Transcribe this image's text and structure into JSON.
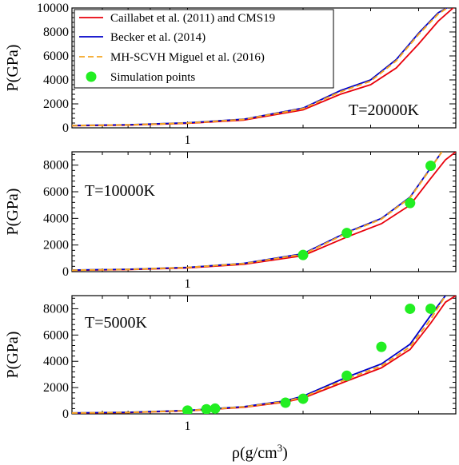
{
  "chart_data": [
    {
      "type": "line",
      "annotation": "T=20000K",
      "ylabel": "P(GPa)",
      "xlabel": "",
      "ylim": [
        0,
        10000
      ],
      "yticks": [
        0,
        2000,
        4000,
        6000,
        8000,
        10000
      ],
      "ytick_labels": [
        "0",
        "2000",
        "4000",
        "6000",
        "8000",
        "10000"
      ],
      "xscale": "log",
      "xlim": [
        0.5,
        5.0
      ],
      "xtick_labels": [
        {
          "value": 1,
          "label": "1"
        }
      ],
      "legend_loc": "top-left",
      "series": [
        {
          "name": "Caillabet et al. (2011) and CMS19",
          "color": "#e8000b",
          "style": "solid",
          "x": [
            0.5,
            0.7,
            1.0,
            1.4,
            2.0,
            2.5,
            3.0,
            3.5,
            4.0,
            4.5,
            5.0
          ],
          "y": [
            180,
            230,
            370,
            650,
            1500,
            2800,
            3600,
            5000,
            7000,
            8900,
            10200
          ]
        },
        {
          "name": "Becker et al. (2014)",
          "color": "#0000c8",
          "style": "solid",
          "x": [
            0.5,
            0.7,
            1.0,
            1.4,
            2.0,
            2.5,
            3.0,
            3.5,
            4.0,
            4.5,
            4.85
          ],
          "y": [
            200,
            260,
            420,
            720,
            1650,
            3100,
            4000,
            5700,
            7900,
            9600,
            10200
          ]
        },
        {
          "name": "MH-SCVH Miguel et al. (2016)",
          "color": "#f5a623",
          "style": "dashed",
          "x": [
            0.5,
            0.7,
            1.0,
            1.4,
            2.0,
            2.5,
            3.0,
            3.5,
            4.0,
            4.5,
            4.85
          ],
          "y": [
            190,
            250,
            400,
            700,
            1600,
            3000,
            3900,
            5600,
            7800,
            9500,
            10200
          ]
        },
        {
          "name": "Simulation points",
          "color": "#22ee22",
          "style": "marker",
          "x": [],
          "y": []
        }
      ]
    },
    {
      "type": "line",
      "annotation": "T=10000K",
      "ylabel": "P(GPa)",
      "xlabel": "",
      "ylim": [
        0,
        9000
      ],
      "yticks": [
        0,
        2000,
        4000,
        6000,
        8000
      ],
      "ytick_labels": [
        "0",
        "2000",
        "4000",
        "6000",
        "8000"
      ],
      "xscale": "log",
      "xlim": [
        0.5,
        5.0
      ],
      "xtick_labels": [
        {
          "value": 1,
          "label": "1"
        }
      ],
      "series": [
        {
          "name": "Caillabet et al. (2011) and CMS19",
          "color": "#e8000b",
          "style": "solid",
          "x": [
            0.5,
            0.7,
            1.0,
            1.4,
            2.0,
            2.6,
            3.2,
            3.8,
            4.3,
            4.7,
            5.0
          ],
          "y": [
            100,
            150,
            280,
            550,
            1200,
            2600,
            3600,
            5000,
            7000,
            8400,
            9000
          ]
        },
        {
          "name": "Becker et al. (2014)",
          "color": "#0000c8",
          "style": "solid",
          "x": [
            0.5,
            0.7,
            1.0,
            1.4,
            2.0,
            2.6,
            3.2,
            3.8,
            4.3,
            4.6
          ],
          "y": [
            120,
            180,
            320,
            620,
            1350,
            2950,
            4000,
            5600,
            7800,
            9000
          ]
        },
        {
          "name": "MH-SCVH Miguel et al. (2016)",
          "color": "#f5a623",
          "style": "dashed",
          "x": [
            0.5,
            0.7,
            1.0,
            1.4,
            2.0,
            2.6,
            3.2,
            3.8,
            4.3,
            4.6
          ],
          "y": [
            110,
            170,
            310,
            600,
            1300,
            2900,
            3950,
            5550,
            7750,
            9000
          ]
        },
        {
          "name": "Simulation points",
          "color": "#22ee22",
          "style": "marker",
          "x": [
            2.0,
            2.6,
            3.8,
            4.3
          ],
          "y": [
            1250,
            2900,
            5150,
            7950
          ]
        }
      ]
    },
    {
      "type": "line",
      "annotation": "T=5000K",
      "ylabel": "P(GPa)",
      "xlabel": "ρ(g/cm",
      "xlabel_sup": "3",
      "xlabel_tail": ")",
      "ylim": [
        0,
        9000
      ],
      "yticks": [
        0,
        2000,
        4000,
        6000,
        8000
      ],
      "ytick_labels": [
        "0",
        "2000",
        "4000",
        "6000",
        "8000"
      ],
      "xscale": "log",
      "xlim": [
        0.5,
        5.0
      ],
      "xtick_labels": [
        {
          "value": 1,
          "label": "1"
        }
      ],
      "series": [
        {
          "name": "Caillabet et al. (2011) and CMS19",
          "color": "#e8000b",
          "style": "solid",
          "x": [
            0.5,
            0.7,
            1.0,
            1.4,
            1.8,
            2.0,
            2.6,
            3.2,
            3.8,
            4.3,
            4.7,
            5.0
          ],
          "y": [
            60,
            100,
            230,
            500,
            900,
            1200,
            2500,
            3500,
            4900,
            6900,
            8500,
            9000
          ]
        },
        {
          "name": "Becker et al. (2014)",
          "color": "#0000c8",
          "style": "solid",
          "x": [
            0.5,
            0.7,
            1.0,
            1.4,
            1.8,
            2.0,
            2.6,
            3.2,
            3.8,
            4.3,
            4.7
          ],
          "y": [
            70,
            120,
            270,
            550,
            1000,
            1350,
            2800,
            3800,
            5300,
            7500,
            9000
          ]
        },
        {
          "name": "MH-SCVH Miguel et al. (2016)",
          "color": "#f5a623",
          "style": "dashed",
          "x": [
            0.5,
            0.7,
            1.0,
            1.4,
            1.8,
            2.0,
            2.6,
            3.2,
            3.8,
            4.3,
            4.7
          ],
          "y": [
            65,
            110,
            250,
            530,
            950,
            1280,
            2650,
            3650,
            5100,
            7200,
            9000
          ]
        },
        {
          "name": "Simulation points",
          "color": "#22ee22",
          "style": "marker",
          "x": [
            1.0,
            1.12,
            1.18,
            1.8,
            2.0,
            2.6,
            3.2,
            3.8,
            4.3
          ],
          "y": [
            250,
            350,
            400,
            850,
            1150,
            2900,
            5100,
            8000,
            8000
          ]
        }
      ]
    }
  ]
}
